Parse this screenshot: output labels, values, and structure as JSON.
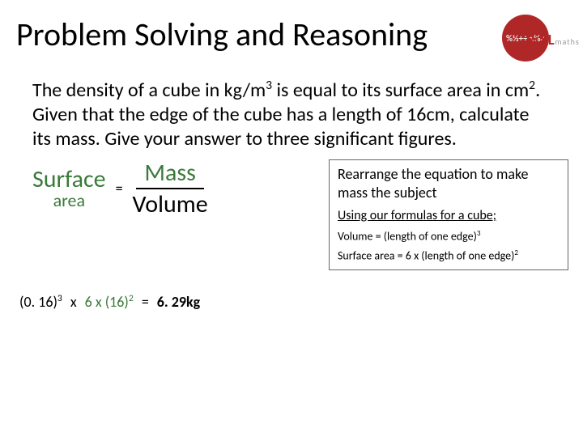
{
  "title": "Problem Solving and Reasoning",
  "logo": {
    "circle_text": "%½+÷\n±%×",
    "label": "PiXL",
    "sublabel": "maths"
  },
  "problem": {
    "l1": "The density of a cube in kg/m",
    "exp1": "3",
    "l2": " is equal to its surface area in cm",
    "exp2": "2",
    "l3": ". Given that the edge of the cube has a length of 16cm, calculate its mass. Give your answer to three significant figures."
  },
  "formula": {
    "surface_top": "Surface",
    "surface_bot": "area",
    "eq": "=",
    "numerator": "Mass",
    "denominator": "Volume"
  },
  "sidebox": {
    "hint": "Rearrange the equation to make mass the subject",
    "u": "Using our formulas for a cube;",
    "r1": "Volume = (length of one edge)",
    "r1exp": "3",
    "r2": "Surface area = 6 x (length of one edge)",
    "r2exp": "2"
  },
  "calc": {
    "a": "(0. 16)",
    "a_exp": "3",
    "x1": "x",
    "b": "6 x (16)",
    "b_exp": "2",
    "eq": "=",
    "ans": "6. 29kg"
  },
  "colors": {
    "surface": "#3a7a3a",
    "text": "#000000",
    "logo_bg": "#b02727"
  }
}
